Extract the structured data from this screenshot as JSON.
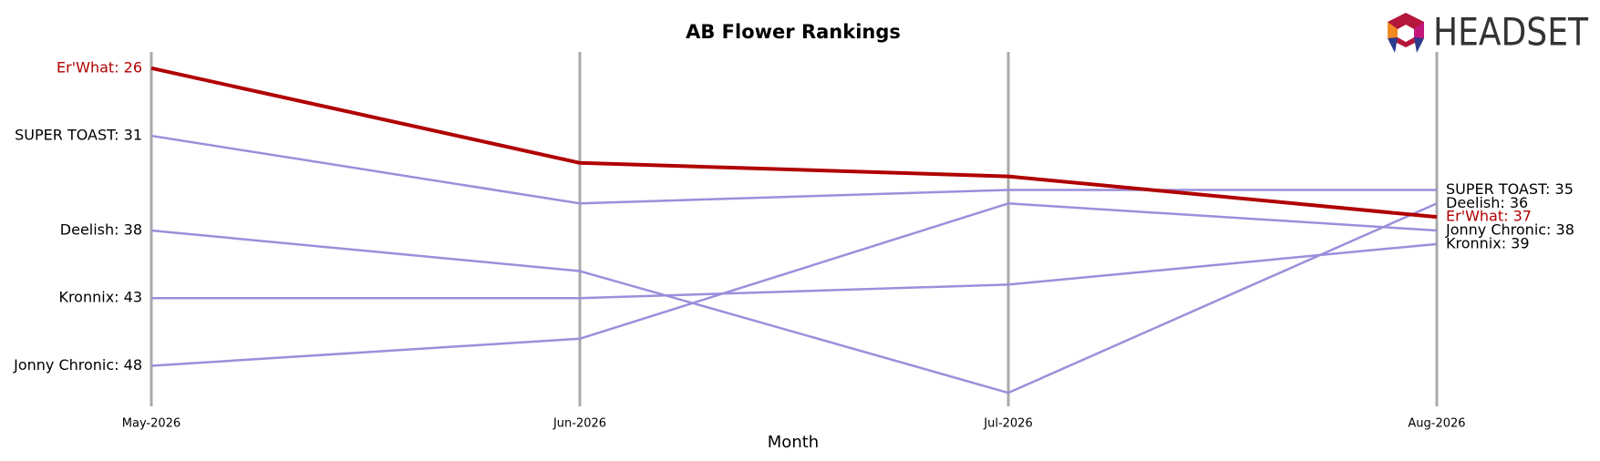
{
  "chart_data": {
    "type": "bump",
    "title": "AB Flower Rankings",
    "xlabel": "Month",
    "logo": "HEADSET",
    "categories": [
      "May-2026",
      "Jun-2026",
      "Jul-2026",
      "Aug-2026"
    ],
    "ylim": [
      51,
      24.8
    ],
    "y_inverted": true,
    "series": [
      {
        "color": "#9b8fdb",
        "values": [
          31,
          36,
          35,
          35
        ],
        "value_labels": [
          "SUPER TOAST: 31",
          null,
          null,
          "SUPER TOAST: 35"
        ]
      },
      {
        "color": "#9b8fdb",
        "values": [
          38,
          41,
          50,
          36
        ],
        "value_labels": [
          "Deelish: 38",
          null,
          null,
          "Deelish: 36"
        ]
      },
      {
        "color": "#9b8fdb",
        "values": [
          43,
          43,
          42,
          39
        ],
        "value_labels": [
          "Kronnix: 43",
          null,
          null,
          "Kronnix: 39"
        ]
      },
      {
        "color": "#9b8fdb",
        "values": [
          48,
          46,
          36,
          38
        ],
        "value_labels": [
          "Jonny Chronic: 48",
          null,
          null,
          "Jonny Chronic: 38"
        ]
      },
      {
        "color": "#b00000",
        "highlight": true,
        "values": [
          26,
          33,
          34,
          37
        ],
        "value_labels": [
          "Er'What: 26",
          null,
          null,
          "Er'What: 37"
        ]
      }
    ]
  }
}
